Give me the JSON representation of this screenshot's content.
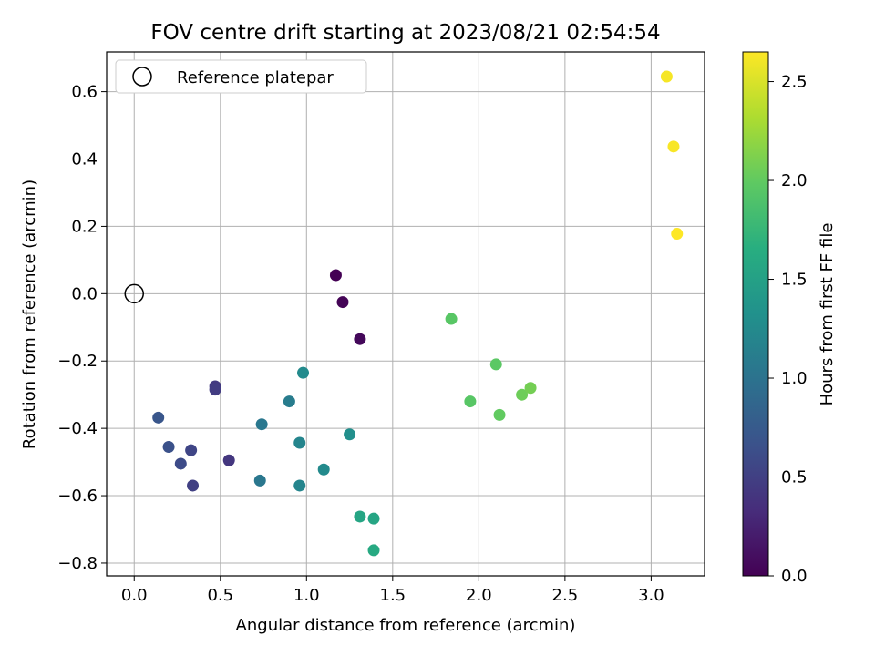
{
  "chart_data": {
    "type": "scatter",
    "title": "FOV centre drift starting at 2023/08/21 02:54:54",
    "xlabel": "Angular distance from reference (arcmin)",
    "ylabel": "Rotation from reference (arcmin)",
    "xlim": [
      -0.16,
      3.31
    ],
    "ylim": [
      -0.838,
      0.718
    ],
    "xticks": [
      0.0,
      0.5,
      1.0,
      1.5,
      2.0,
      2.5,
      3.0
    ],
    "xtick_labels": [
      "0.0",
      "0.5",
      "1.0",
      "1.5",
      "2.0",
      "2.5",
      "3.0"
    ],
    "yticks": [
      -0.8,
      -0.6,
      -0.4,
      -0.2,
      0.0,
      0.2,
      0.4,
      0.6
    ],
    "ytick_labels": [
      "−0.8",
      "−0.6",
      "−0.4",
      "−0.2",
      "0.0",
      "0.2",
      "0.4",
      "0.6"
    ],
    "grid": true,
    "legend": {
      "position": "top-left",
      "entries": [
        "Reference platepar"
      ]
    },
    "reference_point": {
      "x": 0.0,
      "y": 0.0,
      "name": "Reference platepar"
    },
    "colorbar": {
      "label": "Hours from first FF file",
      "range": [
        0.0,
        2.65
      ],
      "ticks": [
        0.0,
        0.5,
        1.0,
        1.5,
        2.0,
        2.5
      ],
      "tick_labels": [
        "0.0",
        "0.5",
        "1.0",
        "1.5",
        "2.0",
        "2.5"
      ],
      "colormap": "viridis"
    },
    "points": [
      {
        "x": 1.17,
        "y": 0.055,
        "c": 0.0
      },
      {
        "x": 1.21,
        "y": -0.025,
        "c": 0.02
      },
      {
        "x": 1.31,
        "y": -0.135,
        "c": 0.05
      },
      {
        "x": 0.47,
        "y": -0.275,
        "c": 0.45
      },
      {
        "x": 0.47,
        "y": -0.285,
        "c": 0.47
      },
      {
        "x": 0.55,
        "y": -0.495,
        "c": 0.42
      },
      {
        "x": 0.34,
        "y": -0.57,
        "c": 0.5
      },
      {
        "x": 0.33,
        "y": -0.465,
        "c": 0.55
      },
      {
        "x": 0.27,
        "y": -0.505,
        "c": 0.6
      },
      {
        "x": 0.2,
        "y": -0.455,
        "c": 0.65
      },
      {
        "x": 0.14,
        "y": -0.368,
        "c": 0.7
      },
      {
        "x": 0.74,
        "y": -0.388,
        "c": 1.05
      },
      {
        "x": 0.73,
        "y": -0.555,
        "c": 1.05
      },
      {
        "x": 0.9,
        "y": -0.32,
        "c": 1.1
      },
      {
        "x": 0.96,
        "y": -0.443,
        "c": 1.2
      },
      {
        "x": 0.98,
        "y": -0.235,
        "c": 1.25
      },
      {
        "x": 0.96,
        "y": -0.57,
        "c": 1.2
      },
      {
        "x": 1.1,
        "y": -0.522,
        "c": 1.25
      },
      {
        "x": 1.25,
        "y": -0.418,
        "c": 1.3
      },
      {
        "x": 1.31,
        "y": -0.662,
        "c": 1.55
      },
      {
        "x": 1.39,
        "y": -0.668,
        "c": 1.55
      },
      {
        "x": 1.39,
        "y": -0.762,
        "c": 1.6
      },
      {
        "x": 1.84,
        "y": -0.075,
        "c": 1.95
      },
      {
        "x": 1.95,
        "y": -0.32,
        "c": 1.95
      },
      {
        "x": 2.1,
        "y": -0.21,
        "c": 1.97
      },
      {
        "x": 2.12,
        "y": -0.36,
        "c": 2.0
      },
      {
        "x": 2.25,
        "y": -0.3,
        "c": 2.05
      },
      {
        "x": 2.3,
        "y": -0.28,
        "c": 2.08
      },
      {
        "x": 3.09,
        "y": 0.645,
        "c": 2.62
      },
      {
        "x": 3.13,
        "y": 0.437,
        "c": 2.63
      },
      {
        "x": 3.15,
        "y": 0.178,
        "c": 2.65
      }
    ]
  }
}
